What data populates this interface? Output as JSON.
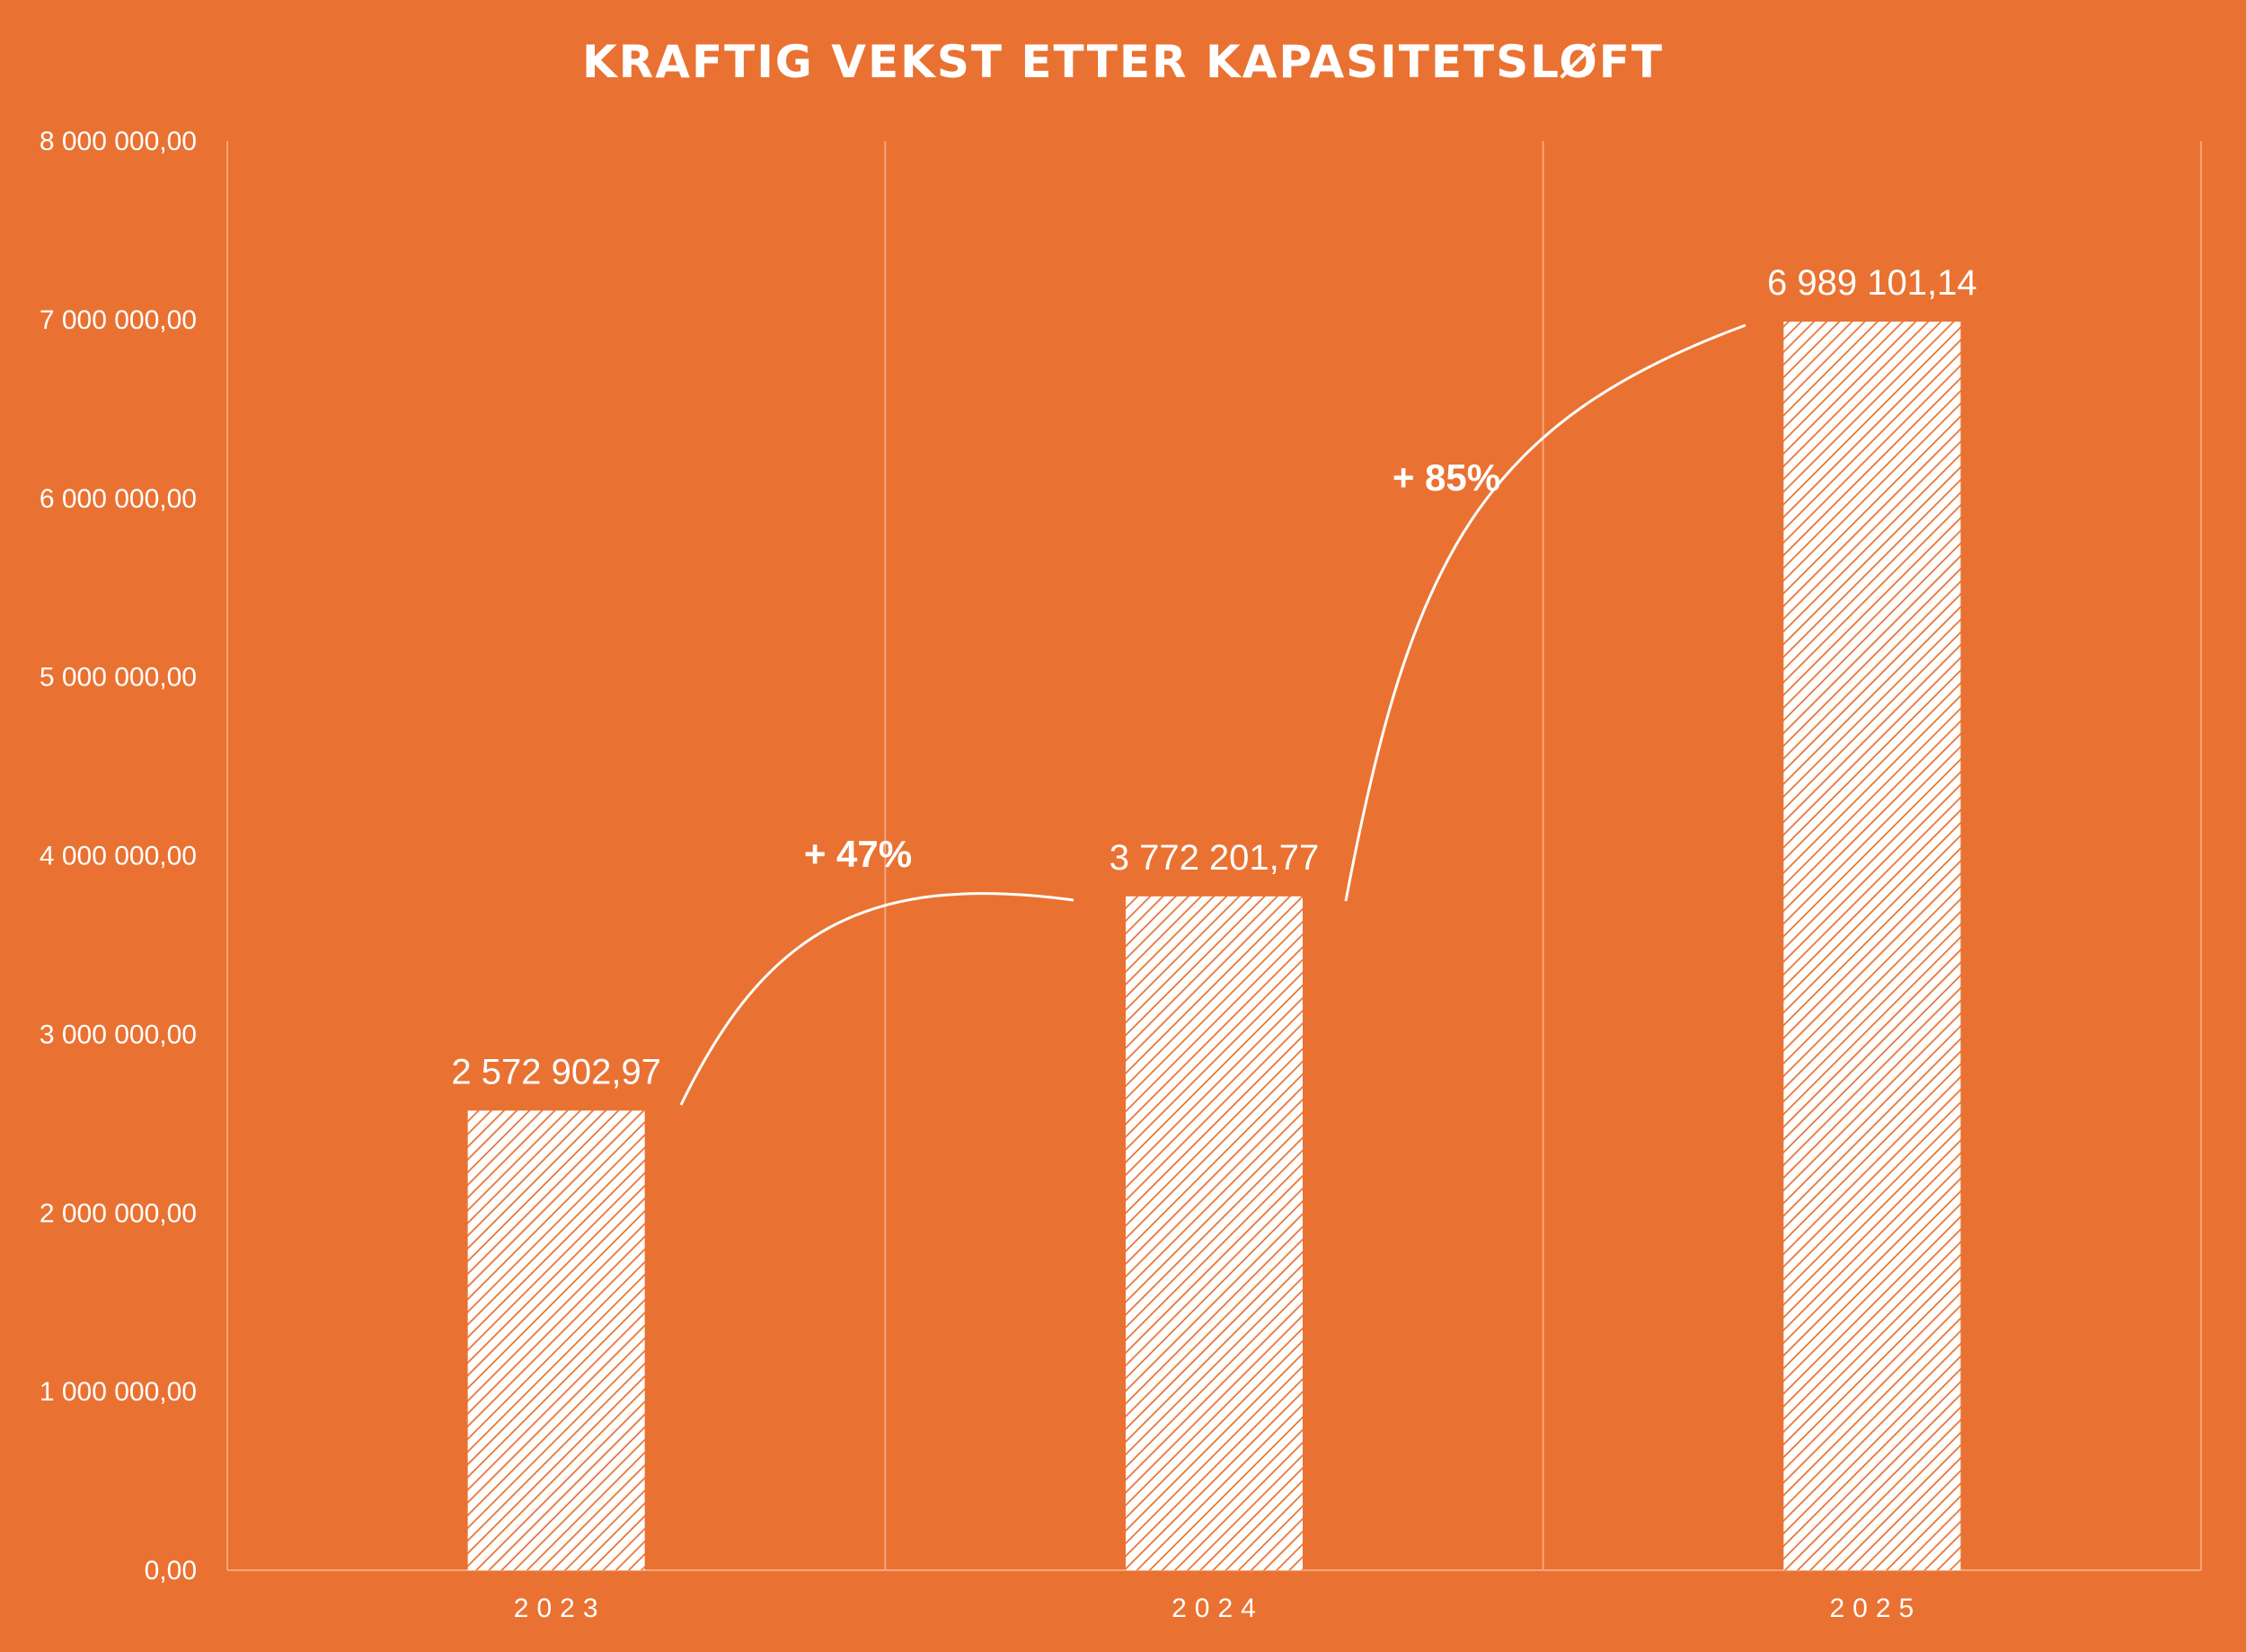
{
  "colors": {
    "background": "#E97232",
    "bar_fill": "#ffffff",
    "bar_hatch": "#E97232",
    "grid": "#F3A67C",
    "text": "#ffffff"
  },
  "chart_data": {
    "type": "bar",
    "title": "KRAFTIG VEKST ETTER KAPASITETSLØFT",
    "xlabel": "",
    "ylabel": "",
    "categories": [
      "2023",
      "2024",
      "2025"
    ],
    "values": [
      2572902.97,
      3772201.77,
      6989101.14
    ],
    "value_labels": [
      "2 572 902,97",
      "3 772 201,77",
      "6 989 101,14"
    ],
    "ylim": [
      0,
      8000000
    ],
    "yticks": [
      0,
      1000000,
      2000000,
      3000000,
      4000000,
      5000000,
      6000000,
      7000000,
      8000000
    ],
    "ytick_labels": [
      "0,00",
      "1 000 000,00",
      "2 000 000,00",
      "3 000 000,00",
      "4 000 000,00",
      "5 000 000,00",
      "6 000 000,00",
      "7 000 000,00",
      "8 000 000,00"
    ],
    "grid": "vertical",
    "annotations": [
      {
        "text": "+ 47%",
        "from": "2023",
        "to": "2024"
      },
      {
        "text": "+ 85%",
        "from": "2024",
        "to": "2025"
      }
    ]
  }
}
